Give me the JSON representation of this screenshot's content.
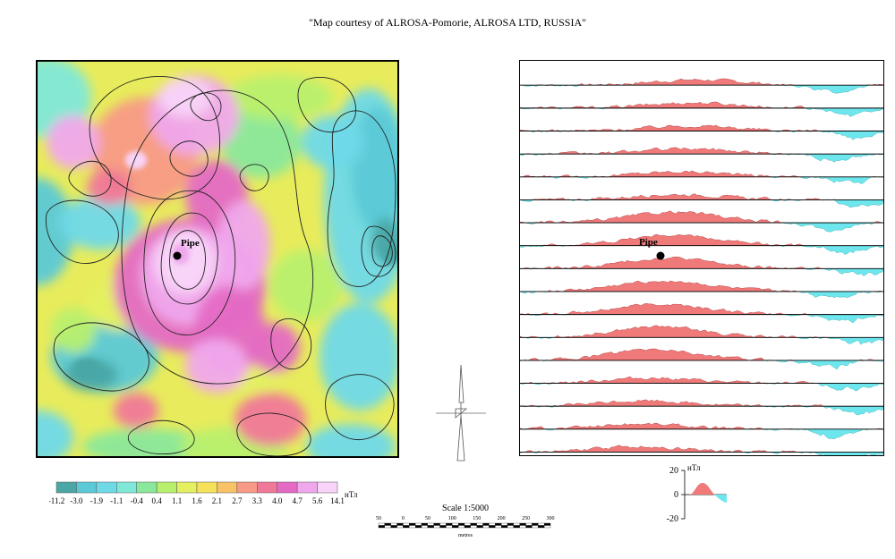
{
  "title": "\"Map courtesy of ALROSA-Pomorie, ALROSA LTD, RUSSIA\"",
  "map": {
    "label": "Pipe",
    "background_color": "#e8ec5c",
    "palette": [
      "#4aa7a5",
      "#5bc9d6",
      "#6fd9e8",
      "#7fe8d8",
      "#8ae89a",
      "#b8f06e",
      "#e4f060",
      "#f6e25a",
      "#f8c266",
      "#f89a86",
      "#f07898",
      "#e46ac4",
      "#f0a8ec",
      "#f8d4f8"
    ]
  },
  "colorbar": {
    "unit": "нТл",
    "labels": [
      "-11.2",
      "-3.0",
      "-1.9",
      "-1.1",
      "-0.4",
      "0.4",
      "1.1",
      "1.6",
      "2.1",
      "2.7",
      "3.3",
      "4.0",
      "4.7",
      "5.6",
      "14.1"
    ],
    "colors": [
      "#4aa7a5",
      "#5bc9d6",
      "#6fd9e8",
      "#7fe8d8",
      "#8ae89a",
      "#b8f06e",
      "#e4f060",
      "#f6e25a",
      "#f8c266",
      "#f89a86",
      "#f07898",
      "#e46ac4",
      "#f0a8ec",
      "#f8d4f8"
    ]
  },
  "profiles": {
    "label": "Pipe",
    "positive_color": "#f07a7a",
    "negative_color": "#6ee6ee",
    "line_count": 17
  },
  "profile_legend": {
    "unit": "нТл",
    "ticks": [
      "20",
      "0",
      "-20"
    ]
  },
  "scale": {
    "title": "Scale 1:5000",
    "ticks": [
      "50",
      "0",
      "50",
      "100",
      "150",
      "200",
      "250",
      "300"
    ],
    "unit": "metres"
  }
}
